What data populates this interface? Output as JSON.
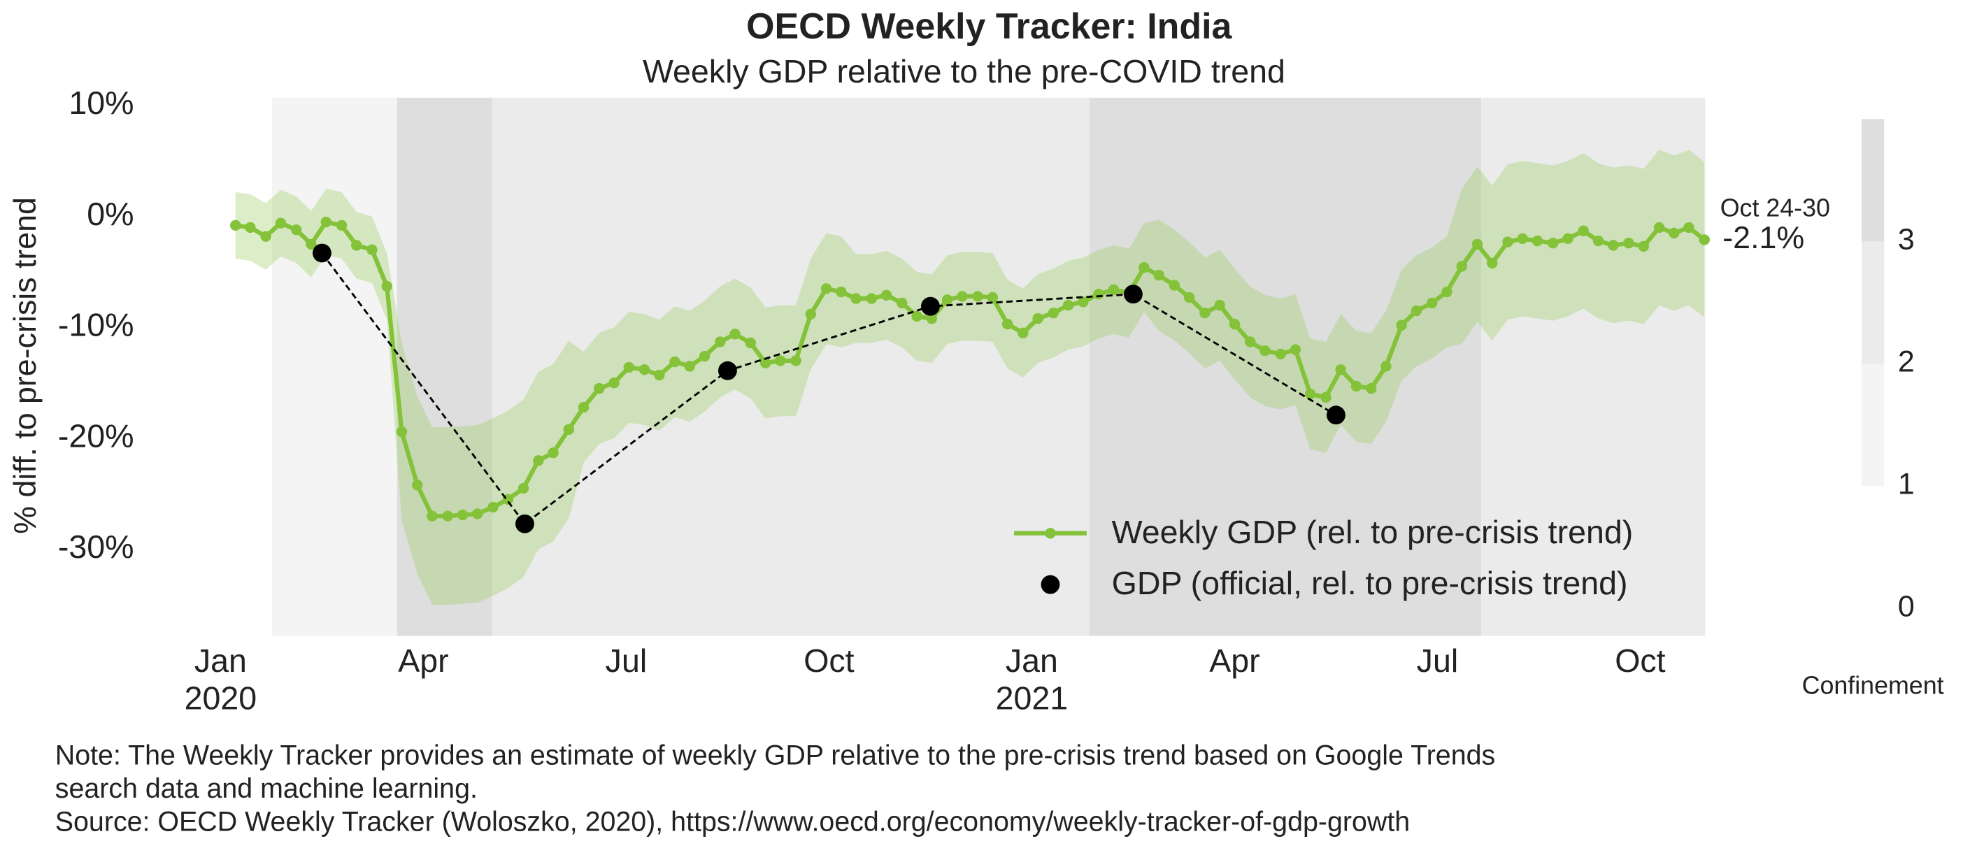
{
  "chart_data": {
    "type": "line",
    "title": "OECD Weekly Tracker: India",
    "subtitle": "Weekly GDP relative to the pre-COVID trend",
    "ylabel": "% diff. to pre-crisis trend",
    "xlim": [
      -0.3,
      21.96
    ],
    "ylim": [
      -37.8,
      10.7
    ],
    "xticks": [
      {
        "value": 0,
        "label": "Jan\n2020"
      },
      {
        "value": 3,
        "label": "Apr"
      },
      {
        "value": 6,
        "label": "Jul"
      },
      {
        "value": 9,
        "label": "Oct"
      },
      {
        "value": 12,
        "label": "Jan\n2021"
      },
      {
        "value": 15,
        "label": "Apr"
      },
      {
        "value": 18,
        "label": "Jul"
      },
      {
        "value": 21,
        "label": "Oct"
      }
    ],
    "yticks": [
      {
        "value": -30,
        "label": "-30%"
      },
      {
        "value": -20,
        "label": "-20%"
      },
      {
        "value": -10,
        "label": "-10%"
      },
      {
        "value": 0,
        "label": "0%"
      },
      {
        "value": 10,
        "label": "10%"
      }
    ],
    "grid": false,
    "legend": "lower right",
    "series": [
      {
        "name": "Weekly GDP (rel. to pre-crisis trend)",
        "color": "#84c23a",
        "band_color": "#9ccd5e",
        "x": [
          0.22,
          0.44,
          0.67,
          0.89,
          1.12,
          1.34,
          1.56,
          1.79,
          2.01,
          2.24,
          2.46,
          2.68,
          2.91,
          3.13,
          3.36,
          3.58,
          3.8,
          4.03,
          4.25,
          4.48,
          4.7,
          4.92,
          5.15,
          5.37,
          5.6,
          5.82,
          6.04,
          6.27,
          6.49,
          6.72,
          6.94,
          7.16,
          7.39,
          7.61,
          7.84,
          8.06,
          8.28,
          8.51,
          8.73,
          8.96,
          9.18,
          9.4,
          9.63,
          9.85,
          10.08,
          10.3,
          10.52,
          10.75,
          10.97,
          11.2,
          11.42,
          11.64,
          11.87,
          12.09,
          12.32,
          12.54,
          12.76,
          12.99,
          13.21,
          13.44,
          13.66,
          13.88,
          14.11,
          14.33,
          14.56,
          14.78,
          15.0,
          15.23,
          15.45,
          15.68,
          15.9,
          16.12,
          16.35,
          16.57,
          16.8,
          17.02,
          17.24,
          17.47,
          17.69,
          17.92,
          18.14,
          18.36,
          18.59,
          18.81,
          19.04,
          19.26,
          19.48,
          19.71,
          19.93,
          20.16,
          20.38,
          20.6,
          20.83,
          21.05,
          21.28,
          21.5,
          21.72,
          21.95
        ],
        "values": [
          -0.8,
          -1.0,
          -1.8,
          -0.6,
          -1.2,
          -2.5,
          -0.5,
          -0.8,
          -2.6,
          -3.0,
          -6.3,
          -19.4,
          -24.2,
          -27.0,
          -27.0,
          -26.9,
          -26.8,
          -26.2,
          -25.5,
          -24.5,
          -22.0,
          -21.3,
          -19.2,
          -17.2,
          -15.5,
          -15.0,
          -13.6,
          -13.8,
          -14.3,
          -13.1,
          -13.5,
          -12.6,
          -11.3,
          -10.6,
          -11.4,
          -13.2,
          -13.0,
          -13.0,
          -8.8,
          -6.5,
          -6.8,
          -7.4,
          -7.4,
          -7.1,
          -7.8,
          -9.0,
          -9.2,
          -7.5,
          -7.2,
          -7.2,
          -7.3,
          -9.7,
          -10.5,
          -9.2,
          -8.7,
          -8.0,
          -7.7,
          -7.0,
          -6.6,
          -6.9,
          -4.6,
          -5.3,
          -6.2,
          -7.3,
          -8.7,
          -8.0,
          -9.7,
          -11.3,
          -12.1,
          -12.4,
          -12.0,
          -16.0,
          -16.3,
          -13.8,
          -15.3,
          -15.5,
          -13.5,
          -9.8,
          -8.5,
          -7.8,
          -6.8,
          -4.5,
          -2.5,
          -4.2,
          -2.3,
          -2.0,
          -2.2,
          -2.4,
          -2.0,
          -1.3,
          -2.2,
          -2.6,
          -2.4,
          -2.7,
          -1.0,
          -1.5,
          -1.0,
          -2.1
        ],
        "lower": [
          -3.8,
          -4.0,
          -4.8,
          -3.6,
          -4.2,
          -5.5,
          -3.5,
          -3.8,
          -5.6,
          -6.0,
          -9.3,
          -27.4,
          -32.2,
          -35.0,
          -35.0,
          -34.9,
          -34.8,
          -34.2,
          -33.5,
          -32.5,
          -30.0,
          -29.3,
          -27.2,
          -22.2,
          -20.5,
          -20.0,
          -18.6,
          -18.8,
          -19.3,
          -18.1,
          -18.5,
          -17.6,
          -16.3,
          -15.6,
          -16.4,
          -18.2,
          -18.0,
          -18.0,
          -13.8,
          -11.5,
          -11.8,
          -11.4,
          -11.4,
          -11.1,
          -11.8,
          -13.0,
          -13.2,
          -11.5,
          -11.2,
          -11.2,
          -11.3,
          -13.7,
          -14.5,
          -13.2,
          -12.7,
          -12.0,
          -11.7,
          -11.0,
          -10.6,
          -10.9,
          -8.6,
          -10.3,
          -11.2,
          -12.3,
          -13.7,
          -13.0,
          -14.7,
          -16.3,
          -17.1,
          -17.4,
          -17.0,
          -21.0,
          -21.3,
          -18.8,
          -20.3,
          -20.5,
          -18.5,
          -14.8,
          -13.5,
          -12.8,
          -11.8,
          -11.5,
          -9.5,
          -11.2,
          -9.3,
          -9.0,
          -9.2,
          -9.4,
          -9.0,
          -8.3,
          -9.2,
          -9.6,
          -9.4,
          -9.7,
          -8.0,
          -8.5,
          -8.0,
          -9.1
        ],
        "upper": [
          2.2,
          2.0,
          1.2,
          2.4,
          1.8,
          0.5,
          2.5,
          2.2,
          0.4,
          0.0,
          -3.3,
          -11.4,
          -16.2,
          -19.0,
          -19.0,
          -18.9,
          -18.8,
          -18.2,
          -17.5,
          -16.5,
          -14.0,
          -13.3,
          -11.2,
          -12.2,
          -10.5,
          -10.0,
          -8.6,
          -8.8,
          -9.3,
          -8.1,
          -8.5,
          -7.6,
          -6.3,
          -5.6,
          -6.4,
          -8.2,
          -8.0,
          -8.0,
          -3.8,
          -1.5,
          -1.8,
          -3.4,
          -3.4,
          -3.1,
          -3.8,
          -5.0,
          -5.2,
          -3.5,
          -3.2,
          -3.2,
          -3.3,
          -5.7,
          -6.5,
          -5.2,
          -4.7,
          -4.0,
          -3.7,
          -3.0,
          -2.6,
          -2.9,
          -0.6,
          -0.3,
          -1.2,
          -2.3,
          -3.7,
          -3.0,
          -4.7,
          -6.3,
          -7.1,
          -7.4,
          -7.0,
          -11.0,
          -11.3,
          -8.8,
          -10.3,
          -10.5,
          -8.5,
          -4.8,
          -3.5,
          -2.8,
          -1.8,
          2.5,
          4.5,
          2.8,
          4.7,
          5.0,
          4.8,
          4.6,
          5.0,
          5.7,
          4.8,
          4.4,
          4.6,
          4.3,
          6.0,
          5.5,
          6.0,
          4.9
        ]
      },
      {
        "name": "GDP (official, rel. to pre-crisis trend)",
        "color": "#000000",
        "x": [
          1.5,
          4.5,
          7.5,
          10.5,
          13.5,
          16.5
        ],
        "values": [
          -3.3,
          -27.7,
          -13.9,
          -8.1,
          -7.0,
          -17.9
        ]
      }
    ],
    "annotation": {
      "date": "Oct 24-30",
      "value_label": "-2.1%"
    },
    "confinement": [
      {
        "x0": 0.76,
        "x1": 2.61,
        "level": 1
      },
      {
        "x0": 2.61,
        "x1": 4.02,
        "level": 3
      },
      {
        "x0": 4.02,
        "x1": 12.85,
        "level": 2
      },
      {
        "x0": 12.85,
        "x1": 18.65,
        "level": 3
      },
      {
        "x0": 18.65,
        "x1": 21.96,
        "level": 2
      }
    ],
    "colorbar": {
      "label": "Confinement",
      "lim": [
        0,
        4
      ],
      "ticks": [
        0,
        1,
        2,
        3
      ],
      "levels": [
        {
          "from": 1,
          "to": 2,
          "color": "#f4f4f4"
        },
        {
          "from": 2,
          "to": 3,
          "color": "#ebebeb"
        },
        {
          "from": 3,
          "to": 4,
          "color": "#dedede"
        }
      ]
    },
    "notes": [
      "Note: The Weekly Tracker provides an estimate of weekly GDP relative to the pre-crisis trend based on Google Trends",
      "search data and machine learning.",
      "Source: OECD Weekly Tracker (Woloszko, 2020), https://www.oecd.org/economy/weekly-tracker-of-gdp-growth"
    ]
  }
}
